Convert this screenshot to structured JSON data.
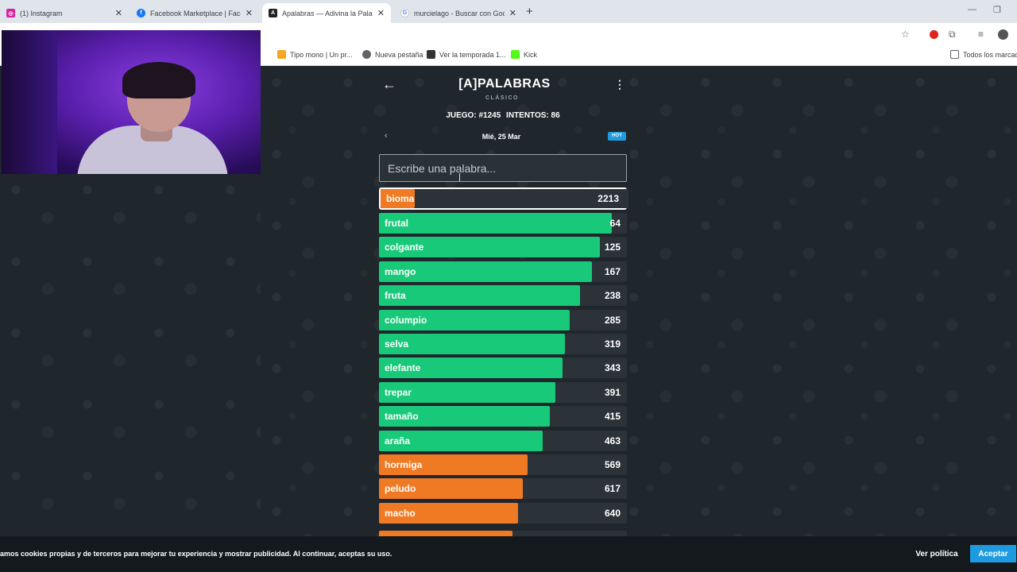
{
  "browser": {
    "tabs": [
      {
        "title": "(1) Instagram",
        "favicon": "instagram-icon",
        "color": "#d6249f"
      },
      {
        "title": "Facebook Marketplace | Facebo",
        "favicon": "facebook-icon",
        "color": "#1877f2"
      },
      {
        "title": "Apalabras — Adivina la Palabra",
        "favicon": "apalabras-icon",
        "color": "#222222"
      },
      {
        "title": "murcielago - Buscar con Googl",
        "favicon": "google-icon",
        "color": "#4285f4"
      }
    ],
    "bookmarks": [
      {
        "label": "Tipo mono | Un pr...",
        "color": "#f5a623"
      },
      {
        "label": "Nueva pestaña",
        "color": "#5f6368"
      },
      {
        "label": "Ver la temporada 1...",
        "color": "#333333"
      },
      {
        "label": "Kick",
        "color": "#53fc18"
      }
    ],
    "all_bookmarks": "Todos los marcadores"
  },
  "app": {
    "title": "[A]PALABRAS",
    "subtitle": "CLÁSICO",
    "game_label": "JUEGO: #1245",
    "attempts_label": "INTENTOS: 86",
    "date": "Mié, 25 Mar",
    "today_badge": "HOY",
    "input_placeholder": "Escribe una palabra..."
  },
  "current_guess": {
    "word": "bioma",
    "rank": "2213",
    "fill": 0.14,
    "color": "#f07a24"
  },
  "guesses": [
    {
      "word": "frutal",
      "rank": "64",
      "fill": 0.94,
      "color": "#19c97a"
    },
    {
      "word": "colgante",
      "rank": "125",
      "fill": 0.89,
      "color": "#19c97a"
    },
    {
      "word": "mango",
      "rank": "167",
      "fill": 0.86,
      "color": "#19c97a"
    },
    {
      "word": "fruta",
      "rank": "238",
      "fill": 0.81,
      "color": "#19c97a"
    },
    {
      "word": "columpio",
      "rank": "285",
      "fill": 0.77,
      "color": "#19c97a"
    },
    {
      "word": "selva",
      "rank": "319",
      "fill": 0.75,
      "color": "#19c97a"
    },
    {
      "word": "elefante",
      "rank": "343",
      "fill": 0.74,
      "color": "#19c97a"
    },
    {
      "word": "trepar",
      "rank": "391",
      "fill": 0.71,
      "color": "#19c97a"
    },
    {
      "word": "tamaño",
      "rank": "415",
      "fill": 0.69,
      "color": "#19c97a"
    },
    {
      "word": "araña",
      "rank": "463",
      "fill": 0.66,
      "color": "#19c97a"
    },
    {
      "word": "hormiga",
      "rank": "569",
      "fill": 0.6,
      "color": "#f07a24"
    },
    {
      "word": "peludo",
      "rank": "617",
      "fill": 0.58,
      "color": "#f07a24"
    },
    {
      "word": "macho",
      "rank": "640",
      "fill": 0.56,
      "color": "#f07a24"
    }
  ],
  "cookie": {
    "text": "amos cookies propias y de terceros para mejorar tu experiencia y mostrar publicidad. Al continuar, aceptas su uso.",
    "policy_label": "Ver política",
    "accept_label": "Aceptar"
  }
}
